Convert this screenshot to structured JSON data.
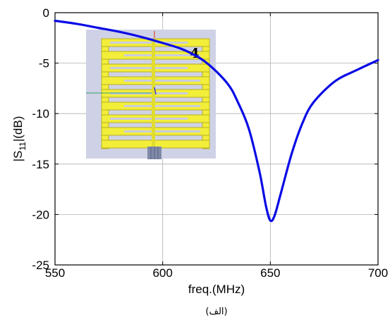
{
  "chart_data": {
    "type": "line",
    "xlabel": "freq.(MHz)",
    "ylabel_base": "|S",
    "ylabel_sub": "11",
    "ylabel_tail": "|(dB)",
    "caption": "(الف)",
    "xlim": [
      550,
      700
    ],
    "ylim": [
      -25,
      0
    ],
    "xticks": [
      550,
      600,
      650,
      700
    ],
    "yticks": [
      0,
      -5,
      -10,
      -15,
      -20,
      -25
    ],
    "grid": true,
    "series": [
      {
        "color": "#0a0ae6",
        "x": [
          550,
          560,
          570,
          580,
          590,
          600,
          610,
          620,
          630,
          635,
          640,
          645,
          648,
          650,
          652,
          655,
          660,
          665,
          670,
          680,
          690,
          700
        ],
        "y": [
          -0.8,
          -1.1,
          -1.5,
          -1.9,
          -2.4,
          -3.0,
          -3.7,
          -4.9,
          -7.0,
          -8.9,
          -11.5,
          -15.8,
          -19.2,
          -20.6,
          -20.1,
          -17.8,
          -13.9,
          -10.9,
          -8.9,
          -6.8,
          -5.7,
          -4.7
        ]
      }
    ],
    "inset": {
      "label": "4",
      "background": "#cfd2e6",
      "trace_color": "#f2ee3a"
    }
  }
}
